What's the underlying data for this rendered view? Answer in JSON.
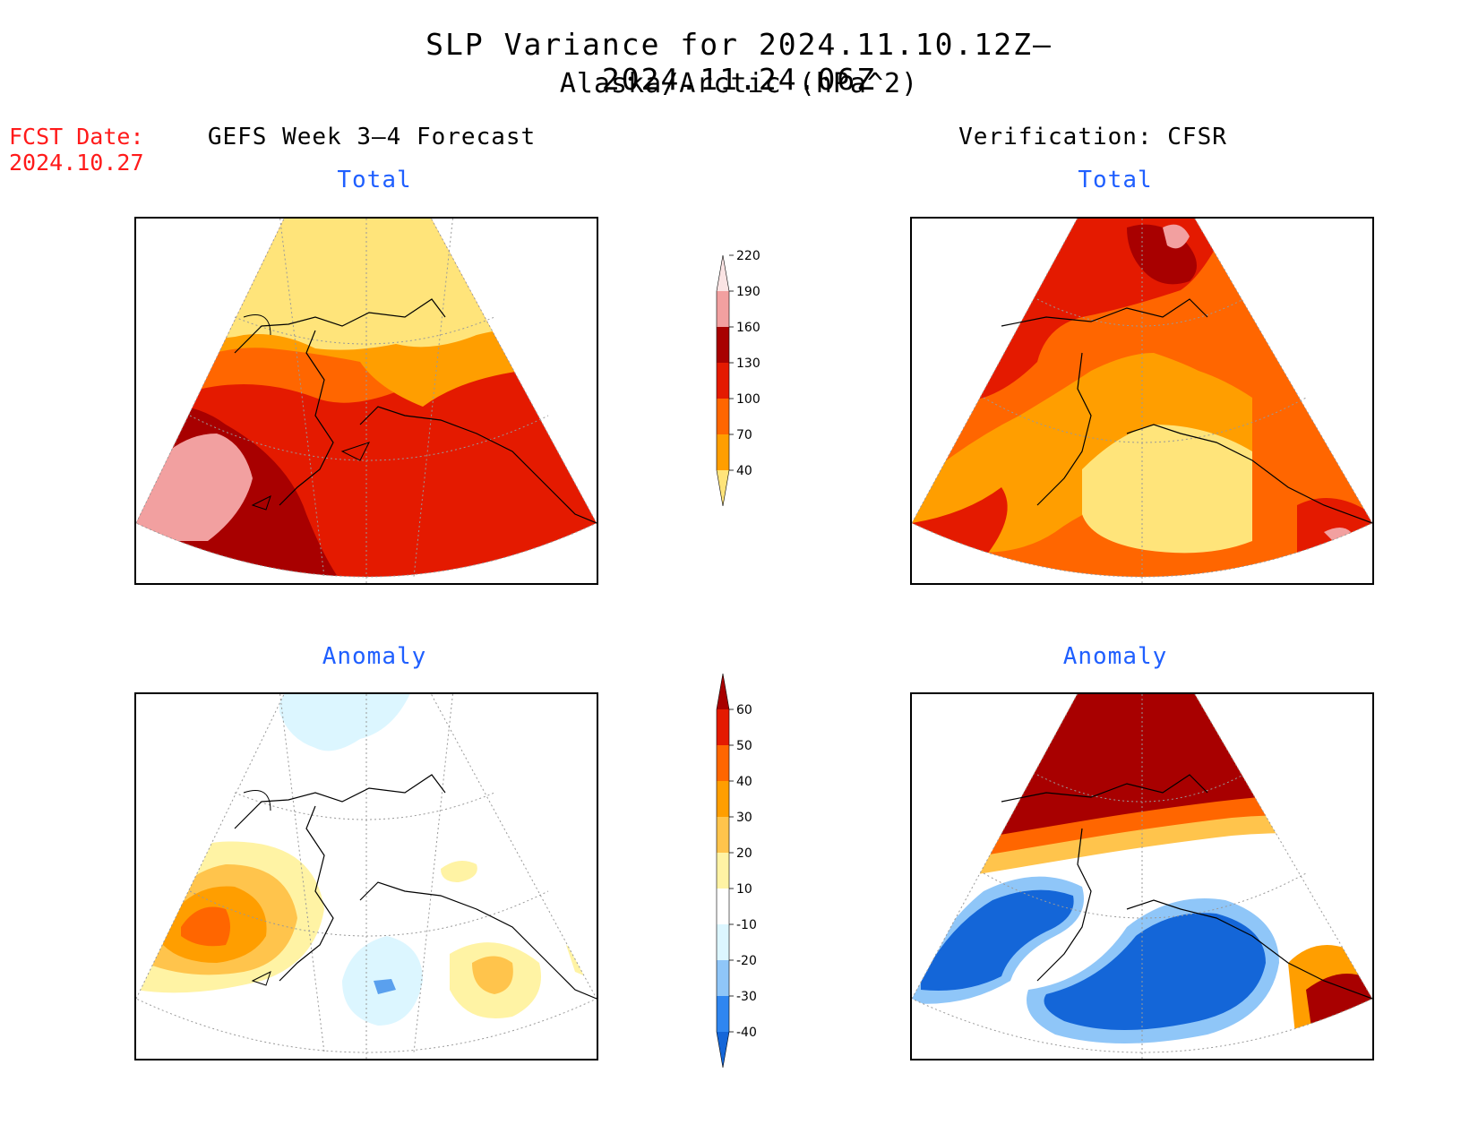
{
  "header": {
    "title_line1": "SLP Variance for 2024.11.10.12Z–2024.11.24.06Z",
    "title_line2": "Alaska/Arctic (hPa^2)",
    "fcst_label": "FCST Date:",
    "fcst_date": "2024.10.27"
  },
  "columns": {
    "left": "GEFS Week 3–4 Forecast",
    "right": "Verification: CFSR"
  },
  "subtitles": {
    "total": "Total",
    "anomaly": "Anomaly"
  },
  "colorbar_total": {
    "levels": [
      "40",
      "70",
      "100",
      "130",
      "160",
      "190",
      "220"
    ],
    "colors": [
      "#ffe47a",
      "#ff9e00",
      "#ff6600",
      "#e41a00",
      "#a80000",
      "#f2a0a0",
      "#fbe4e4"
    ]
  },
  "colorbar_anomaly": {
    "levels": [
      "-40",
      "-30",
      "-20",
      "-10",
      "10",
      "20",
      "30",
      "40",
      "50",
      "60"
    ],
    "colors": [
      "#1466d8",
      "#2f86f0",
      "#8fc6f8",
      "#dcf6ff",
      "#ffffff",
      "#fff3a4",
      "#ffc44c",
      "#ff9e00",
      "#ff6600",
      "#e41a00",
      "#a80000"
    ]
  }
}
